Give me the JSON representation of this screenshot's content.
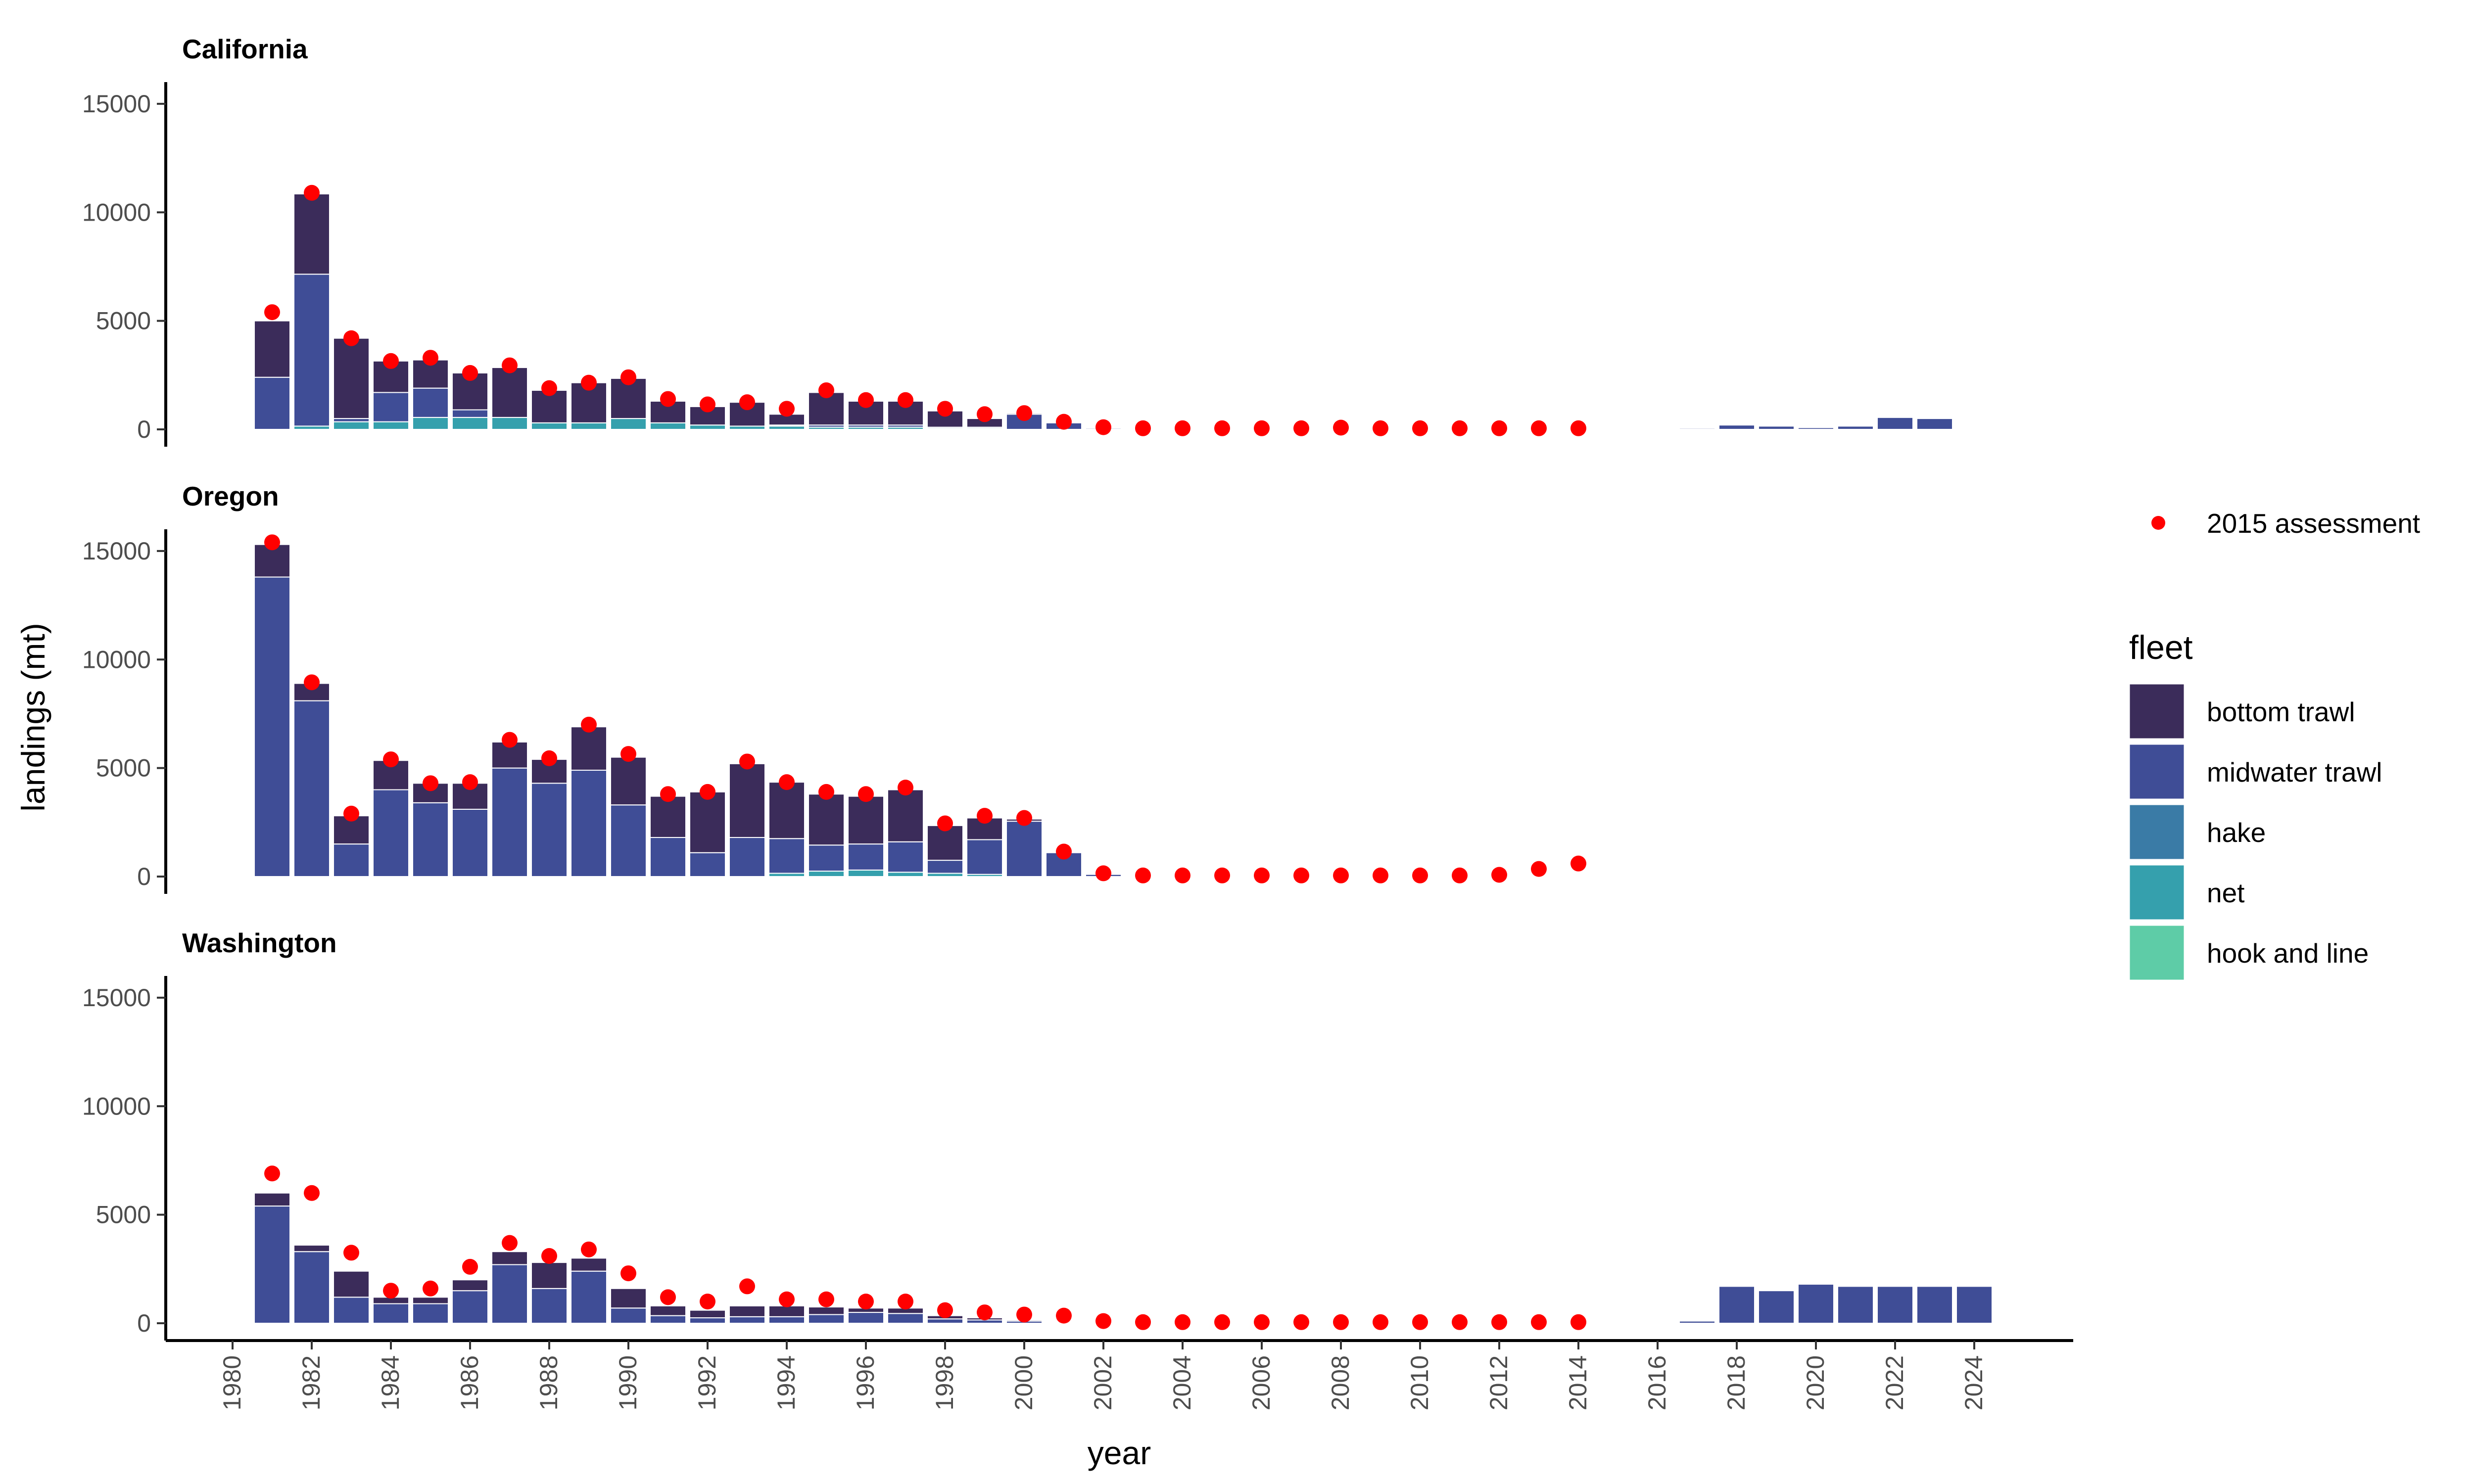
{
  "chart_data": {
    "type": "bar",
    "xlabel": "year",
    "ylabel": "landings (mt)",
    "ylim": [
      0,
      16000
    ],
    "y_ticks": [
      "0",
      "5000",
      "10000",
      "15000"
    ],
    "x_ticks": [
      "1980",
      "1982",
      "1984",
      "1986",
      "1988",
      "1990",
      "1992",
      "1994",
      "1996",
      "1998",
      "2000",
      "2002",
      "2004",
      "2006",
      "2008",
      "2010",
      "2012",
      "2014",
      "2016",
      "2018",
      "2020",
      "2022",
      "2024"
    ],
    "years": [
      1981,
      1982,
      1983,
      1984,
      1985,
      1986,
      1987,
      1988,
      1989,
      1990,
      1991,
      1992,
      1993,
      1994,
      1995,
      1996,
      1997,
      1998,
      1999,
      2000,
      2001,
      2002,
      2003,
      2004,
      2005,
      2006,
      2007,
      2008,
      2009,
      2010,
      2011,
      2012,
      2013,
      2014,
      2015,
      2016,
      2017,
      2018,
      2019,
      2020,
      2021,
      2022,
      2023,
      2024
    ],
    "legend": {
      "points_label": "2015 assessment",
      "fleet_title": "fleet",
      "fleets": [
        {
          "name": "bottom trawl",
          "color": "#3b2c5a"
        },
        {
          "name": "midwater trawl",
          "color": "#3f4d96"
        },
        {
          "name": "hake",
          "color": "#3a7ba6"
        },
        {
          "name": "net",
          "color": "#35a0ad"
        },
        {
          "name": "hook and line",
          "color": "#5ecca7"
        }
      ]
    },
    "point_color": "#ff0000",
    "panels": [
      {
        "title": "California",
        "series": {
          "hook and line": [
            0,
            0,
            0,
            0,
            0,
            0,
            0,
            0,
            0,
            0,
            0,
            0,
            0,
            0,
            0,
            0,
            0,
            0,
            0,
            0,
            0,
            0,
            0,
            0,
            0,
            0,
            0,
            0,
            0,
            0,
            0,
            0,
            0,
            0,
            0,
            0,
            0,
            0,
            0,
            0,
            0,
            0,
            0,
            0
          ],
          "net": [
            0,
            150,
            350,
            350,
            550,
            550,
            550,
            300,
            300,
            500,
            300,
            200,
            150,
            150,
            100,
            100,
            100,
            50,
            50,
            0,
            0,
            0,
            0,
            0,
            0,
            0,
            0,
            0,
            0,
            0,
            0,
            0,
            0,
            0,
            0,
            0,
            0,
            0,
            0,
            0,
            0,
            0,
            0,
            0
          ],
          "hake": [
            0,
            0,
            0,
            0,
            0,
            0,
            0,
            0,
            0,
            0,
            0,
            0,
            0,
            0,
            0,
            0,
            0,
            0,
            0,
            0,
            0,
            0,
            0,
            0,
            0,
            0,
            0,
            0,
            0,
            0,
            0,
            0,
            0,
            0,
            0,
            0,
            0,
            0,
            0,
            0,
            0,
            0,
            0,
            0
          ],
          "midwater trawl": [
            2400,
            7000,
            150,
            1350,
            1350,
            350,
            0,
            0,
            0,
            0,
            0,
            0,
            0,
            50,
            100,
            100,
            100,
            50,
            50,
            700,
            300,
            50,
            0,
            0,
            0,
            0,
            0,
            0,
            0,
            0,
            0,
            0,
            0,
            0,
            0,
            0,
            50,
            200,
            150,
            80,
            150,
            550,
            500,
            30
          ],
          "bottom trawl": [
            2600,
            3700,
            3700,
            1450,
            1300,
            1700,
            2300,
            1500,
            1850,
            1850,
            1000,
            850,
            1100,
            500,
            1500,
            1100,
            1100,
            750,
            400,
            50,
            0,
            0,
            0,
            0,
            0,
            0,
            0,
            0,
            0,
            0,
            0,
            0,
            0,
            0,
            0,
            0,
            0,
            0,
            0,
            0,
            0,
            0,
            0,
            0
          ]
        },
        "assessment": [
          5400,
          10900,
          4200,
          3150,
          3300,
          2600,
          2950,
          1900,
          2150,
          2400,
          1400,
          1150,
          1250,
          950,
          1800,
          1350,
          1350,
          950,
          700,
          750,
          350,
          100,
          50,
          50,
          50,
          50,
          50,
          80,
          50,
          50,
          50,
          50,
          50,
          50,
          null,
          null,
          null,
          null,
          null,
          null,
          null,
          null,
          null,
          null
        ]
      },
      {
        "title": "Oregon",
        "series": {
          "hook and line": [
            0,
            0,
            0,
            0,
            0,
            0,
            0,
            0,
            0,
            0,
            0,
            0,
            0,
            0,
            0,
            0,
            0,
            0,
            0,
            0,
            0,
            0,
            0,
            0,
            0,
            0,
            0,
            0,
            0,
            0,
            0,
            0,
            0,
            0,
            0,
            0,
            0,
            0,
            0,
            0,
            0,
            0,
            0,
            0
          ],
          "net": [
            0,
            0,
            0,
            0,
            0,
            0,
            0,
            0,
            0,
            0,
            0,
            0,
            0,
            150,
            250,
            300,
            200,
            150,
            100,
            0,
            0,
            0,
            0,
            0,
            0,
            0,
            0,
            0,
            0,
            0,
            0,
            0,
            0,
            0,
            0,
            0,
            0,
            0,
            0,
            0,
            0,
            0,
            0,
            0
          ],
          "hake": [
            0,
            0,
            0,
            0,
            0,
            0,
            0,
            0,
            0,
            0,
            0,
            0,
            0,
            0,
            0,
            0,
            0,
            0,
            0,
            0,
            0,
            0,
            0,
            0,
            0,
            0,
            0,
            0,
            0,
            0,
            0,
            0,
            0,
            0,
            0,
            0,
            0,
            0,
            0,
            0,
            0,
            0,
            0,
            0
          ],
          "midwater trawl": [
            13800,
            8100,
            1500,
            4000,
            3400,
            3100,
            5000,
            4300,
            4900,
            3300,
            1800,
            1100,
            1800,
            1600,
            1200,
            1200,
            1400,
            600,
            1600,
            2550,
            1100,
            100,
            0,
            0,
            0,
            0,
            0,
            0,
            0,
            0,
            0,
            0,
            0,
            0,
            0,
            0,
            0,
            0,
            0,
            0,
            0,
            0,
            0,
            0
          ],
          "bottom trawl": [
            1500,
            800,
            1300,
            1350,
            900,
            1200,
            1200,
            1100,
            2000,
            2200,
            1900,
            2800,
            3400,
            2600,
            2350,
            2200,
            2400,
            1600,
            1000,
            100,
            0,
            0,
            0,
            0,
            0,
            0,
            0,
            0,
            0,
            0,
            0,
            0,
            0,
            0,
            0,
            0,
            0,
            0,
            0,
            0,
            0,
            0,
            0,
            0
          ]
        },
        "assessment": [
          15400,
          8950,
          2900,
          5400,
          4300,
          4350,
          6300,
          5450,
          7000,
          5650,
          3800,
          3900,
          5300,
          4350,
          3900,
          3800,
          4100,
          2450,
          2800,
          2700,
          1150,
          150,
          50,
          50,
          50,
          50,
          50,
          50,
          50,
          50,
          50,
          80,
          350,
          600,
          null,
          null,
          null,
          null,
          null,
          null,
          null,
          null,
          null,
          null
        ]
      },
      {
        "title": "Washington",
        "series": {
          "hook and line": [
            0,
            0,
            0,
            0,
            0,
            0,
            0,
            0,
            0,
            0,
            0,
            0,
            0,
            0,
            0,
            0,
            0,
            0,
            0,
            0,
            0,
            0,
            0,
            0,
            0,
            0,
            0,
            0,
            0,
            0,
            0,
            0,
            0,
            0,
            0,
            0,
            0,
            0,
            0,
            0,
            0,
            0,
            0,
            0
          ],
          "net": [
            0,
            0,
            0,
            0,
            0,
            0,
            0,
            0,
            0,
            0,
            0,
            0,
            0,
            0,
            0,
            0,
            0,
            0,
            0,
            0,
            0,
            0,
            0,
            0,
            0,
            0,
            0,
            0,
            0,
            0,
            0,
            0,
            0,
            0,
            0,
            0,
            0,
            0,
            0,
            0,
            0,
            0,
            0,
            0
          ],
          "hake": [
            0,
            0,
            0,
            0,
            0,
            0,
            0,
            0,
            0,
            0,
            0,
            0,
            0,
            0,
            0,
            0,
            0,
            0,
            0,
            0,
            0,
            0,
            0,
            0,
            0,
            0,
            0,
            0,
            0,
            0,
            0,
            0,
            0,
            0,
            0,
            0,
            0,
            0,
            0,
            0,
            0,
            0,
            0,
            0
          ],
          "midwater trawl": [
            5400,
            3300,
            1200,
            900,
            900,
            1500,
            2700,
            1600,
            2400,
            700,
            350,
            250,
            300,
            300,
            400,
            500,
            450,
            200,
            150,
            100,
            0,
            0,
            0,
            0,
            0,
            0,
            0,
            0,
            0,
            0,
            0,
            0,
            0,
            0,
            0,
            0,
            100,
            1700,
            1500,
            1800,
            1700,
            1700,
            1700,
            1700
          ],
          "bottom trawl": [
            600,
            300,
            1200,
            300,
            300,
            500,
            600,
            1200,
            600,
            900,
            450,
            350,
            500,
            500,
            350,
            200,
            250,
            150,
            100,
            50,
            0,
            0,
            0,
            0,
            0,
            0,
            0,
            0,
            0,
            0,
            0,
            0,
            0,
            0,
            0,
            0,
            0,
            0,
            0,
            0,
            0,
            0,
            0,
            0
          ]
        },
        "assessment": [
          6900,
          6000,
          3250,
          1500,
          1600,
          2600,
          3700,
          3100,
          3400,
          2300,
          1200,
          1000,
          1700,
          1100,
          1100,
          1000,
          1000,
          600,
          500,
          400,
          350,
          100,
          50,
          50,
          50,
          50,
          50,
          50,
          50,
          50,
          50,
          50,
          50,
          50,
          null,
          null,
          null,
          null,
          null,
          null,
          null,
          null,
          null,
          null
        ]
      }
    ]
  }
}
